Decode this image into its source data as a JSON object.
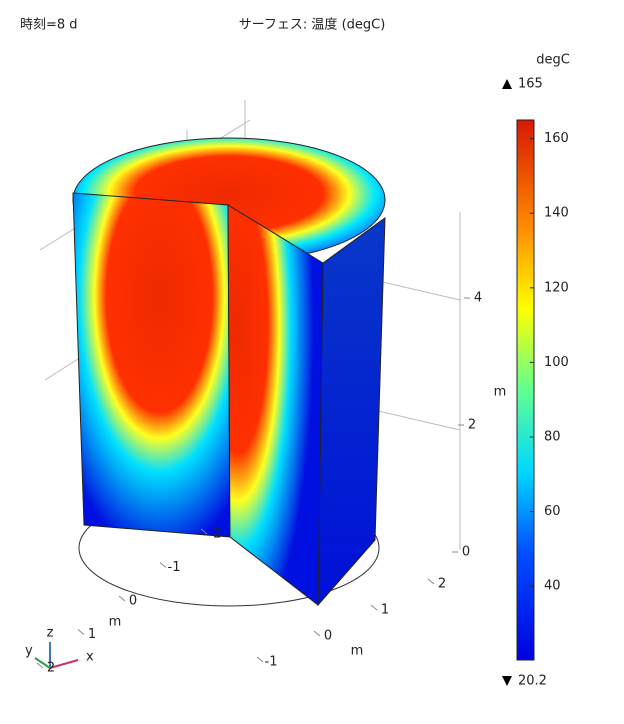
{
  "chart_data": {
    "type": "surface3d",
    "time_label": "時刻=8 d",
    "title": "サーフェス: 温度 (degC)",
    "colorbar": {
      "unit": "degC",
      "lim": [
        20.2,
        165
      ],
      "ticks": [
        40,
        60,
        80,
        100,
        120,
        140,
        160
      ]
    },
    "axes": {
      "x": {
        "label": "m",
        "ticks": [
          -1,
          0,
          1,
          2
        ]
      },
      "y": {
        "label": "m",
        "ticks": [
          -2,
          -1,
          0,
          1,
          2
        ]
      },
      "z": {
        "label": "m",
        "ticks": [
          0,
          2,
          4
        ]
      }
    },
    "triad": [
      "x",
      "y",
      "z"
    ]
  }
}
